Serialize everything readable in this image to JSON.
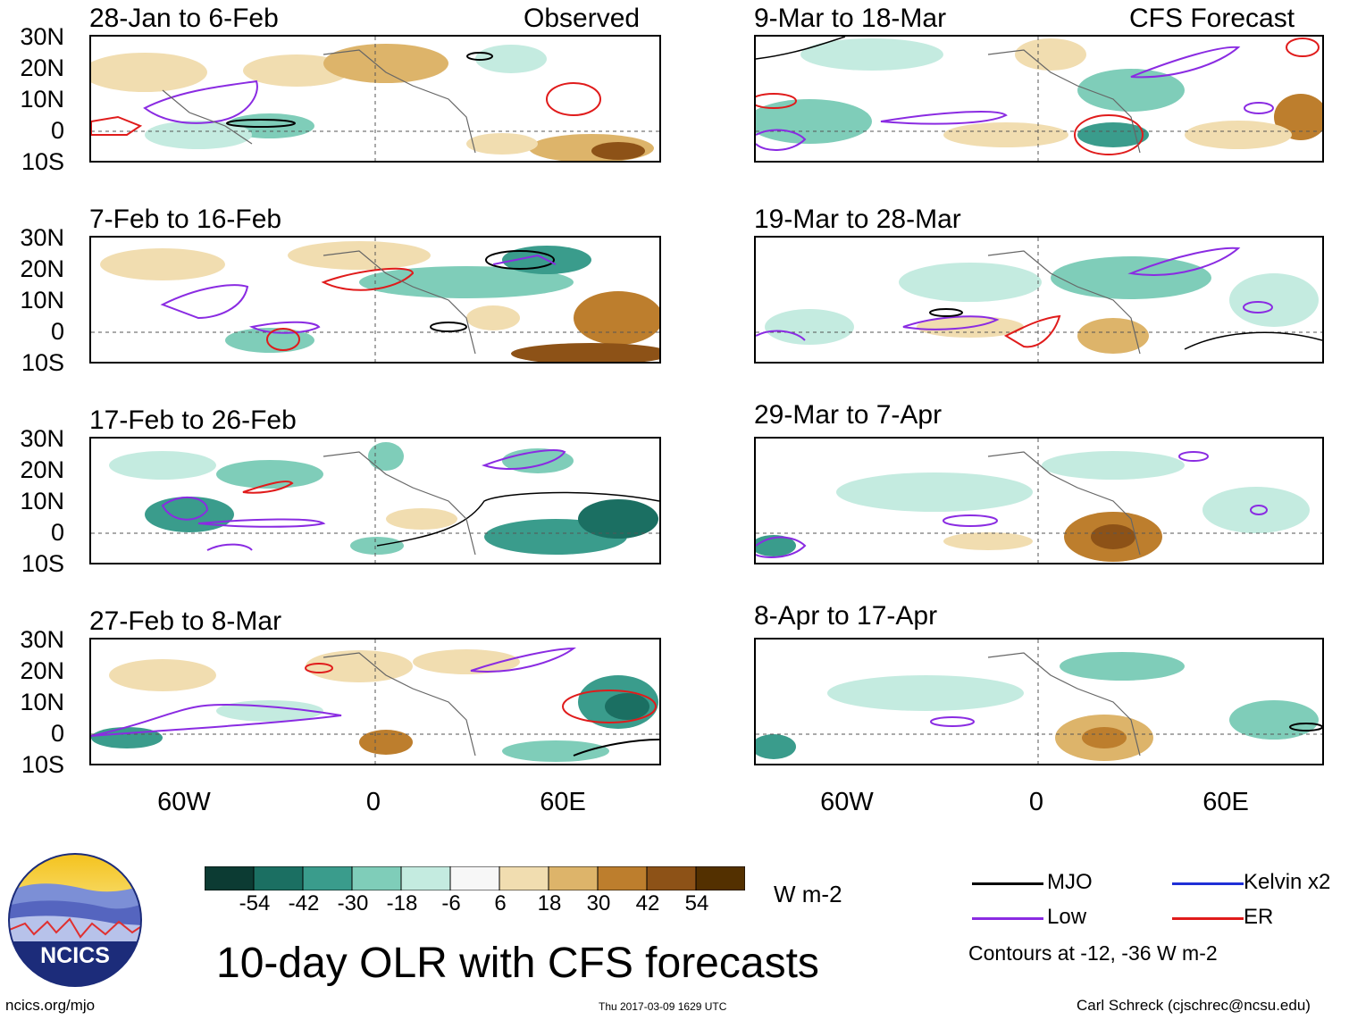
{
  "title": "10-day OLR with CFS forecasts",
  "observed_label": "Observed",
  "forecast_label": "CFS Forecast",
  "lat_labels": [
    "30N",
    "20N",
    "10N",
    "0",
    "10S"
  ],
  "lon_labels": [
    "60W",
    "0",
    "60E"
  ],
  "panels_left": [
    {
      "title": "28-Jan to 6-Feb"
    },
    {
      "title": "7-Feb to 16-Feb"
    },
    {
      "title": "17-Feb to 26-Feb"
    },
    {
      "title": "27-Feb to 8-Mar"
    }
  ],
  "panels_right": [
    {
      "title": "9-Mar to 18-Mar"
    },
    {
      "title": "19-Mar to 28-Mar"
    },
    {
      "title": "29-Mar to 7-Apr"
    },
    {
      "title": "8-Apr to 17-Apr"
    }
  ],
  "colorbar": {
    "labels": [
      "-54",
      "-42",
      "-30",
      "-18",
      "-6",
      "6",
      "18",
      "30",
      "42",
      "54"
    ],
    "colors": [
      "#0c3b33",
      "#1b6f62",
      "#3a9c8c",
      "#7fcdb9",
      "#c4ebe0",
      "#f7f7f7",
      "#f1ddb0",
      "#ddb46a",
      "#bd7e2d",
      "#8d5217",
      "#533000"
    ],
    "units": "W m-2"
  },
  "legend": {
    "items": [
      {
        "label": "MJO",
        "color": "#000000"
      },
      {
        "label": "Kelvin x2",
        "color": "#1f2fd6"
      },
      {
        "label": "Low",
        "color": "#8a2be2"
      },
      {
        "label": "ER",
        "color": "#e01b1b"
      }
    ],
    "note": "Contours at -12, -36 W m-2"
  },
  "logo_text": "NCICS",
  "footer": {
    "left": "ncics.org/mjo",
    "middle": "Thu 2017-03-09 1629 UTC",
    "right": "Carl Schreck (cjschrec@ncsu.edu)"
  }
}
